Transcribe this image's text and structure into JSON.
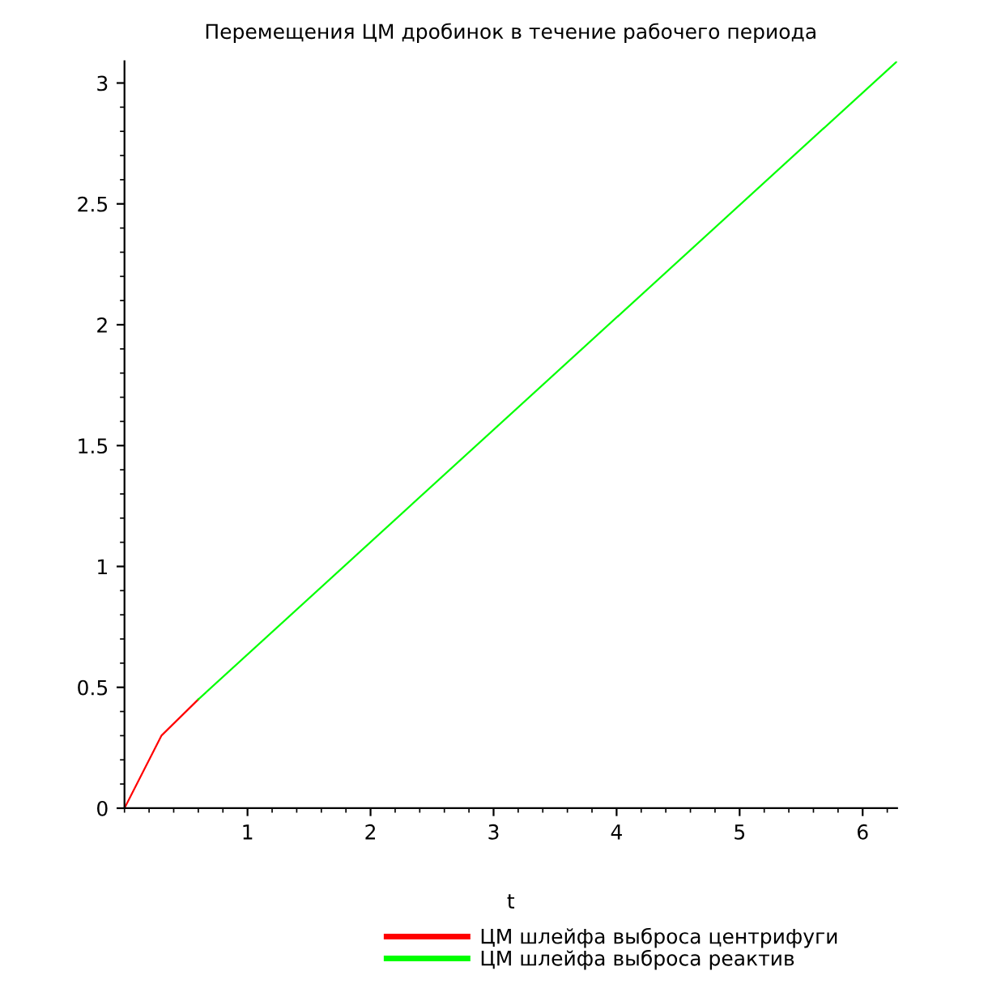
{
  "chart_data": {
    "type": "line",
    "title": "Перемещения ЦМ дробинок в течение рабочего периода",
    "xlabel": "t",
    "xlim": [
      0,
      6.28
    ],
    "ylim": [
      0,
      3.09
    ],
    "xticks": [
      1,
      2,
      3,
      4,
      5,
      6
    ],
    "yticks": [
      0,
      0.5,
      1,
      1.5,
      2,
      2.5,
      3
    ],
    "grid": false,
    "legend": "bottom",
    "marker": "none",
    "line_style": "solid",
    "series": [
      {
        "name": "ЦМ шлейфа выброса центрифуги",
        "color": "#ff0000",
        "x": [
          0,
          0.3,
          0.6
        ],
        "values": [
          0,
          0.3,
          0.45
        ]
      },
      {
        "name": "ЦМ шлейфа выброса реактив",
        "color": "#00ff00",
        "x": [
          0.6,
          6.28
        ],
        "values": [
          0.45,
          3.09
        ]
      }
    ]
  }
}
